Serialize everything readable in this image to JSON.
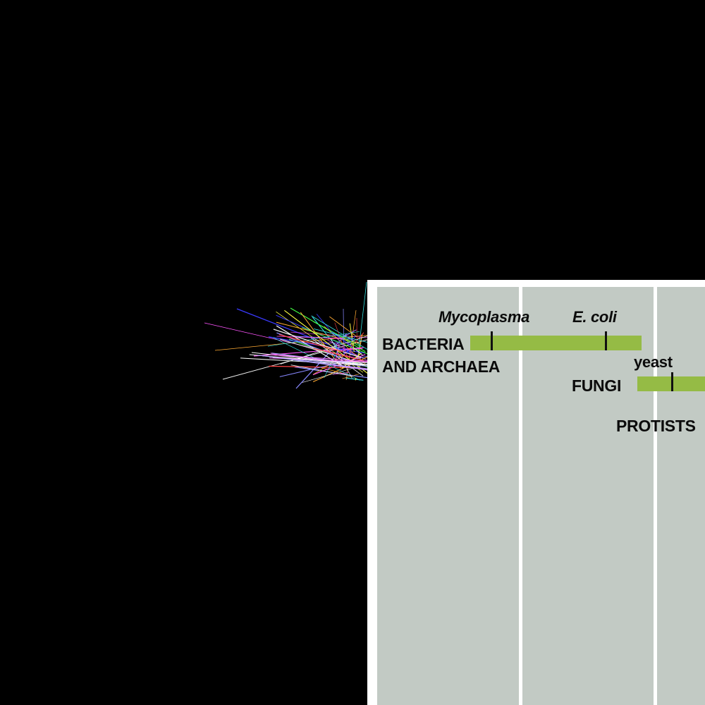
{
  "colors": {
    "background": "#000000",
    "panel_border": "#ffffff",
    "column_fill": "#c2cac4",
    "bar": "#95bb45",
    "tick": "#111111",
    "text": "#0b0b0b"
  },
  "groups": [
    {
      "line1": "BACTERIA",
      "line2": "AND ARCHAEA"
    },
    {
      "line1": "FUNGI"
    },
    {
      "line1": "PROTISTS"
    }
  ],
  "organisms": [
    {
      "name": "Mycoplasma",
      "group": "BACTERIA AND ARCHAEA"
    },
    {
      "name": "E. coli",
      "group": "BACTERIA AND ARCHAEA"
    },
    {
      "name": "yeast",
      "group": "FUNGI"
    }
  ]
}
